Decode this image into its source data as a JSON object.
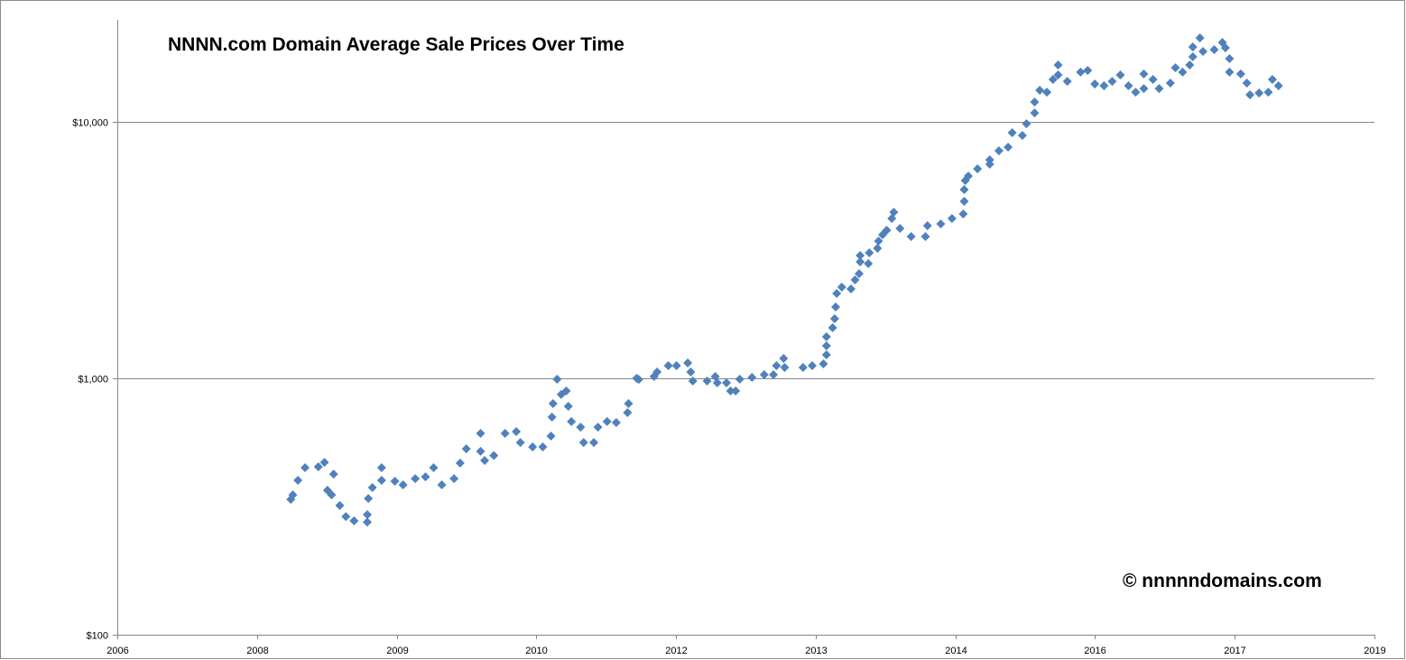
{
  "chart_data": {
    "type": "scatter",
    "title": "NNNN.com Domain Average Sale Prices Over Time",
    "annotation": "© nnnnndomains.com",
    "xlabel": "",
    "ylabel": "",
    "x_tick_labels": [
      "2006",
      "2008",
      "2009",
      "2010",
      "2012",
      "2013",
      "2014",
      "2016",
      "2017",
      "2019"
    ],
    "xlim": [
      2006.7,
      2019.02
    ],
    "y_scale": "log",
    "ylim": [
      100,
      25000
    ],
    "y_ticks": [
      100,
      1000,
      10000
    ],
    "y_tick_labels": [
      "$100",
      "$1,000",
      "$10,000"
    ],
    "grid": "horizontal major gridlines",
    "legend": "none",
    "marker": "diamond",
    "color": "#4f81bd",
    "points": [
      [
        2008.4,
        337
      ],
      [
        2008.42,
        351
      ],
      [
        2008.47,
        400
      ],
      [
        2008.54,
        448
      ],
      [
        2008.67,
        452
      ],
      [
        2008.73,
        470
      ],
      [
        2008.82,
        423
      ],
      [
        2008.76,
        366
      ],
      [
        2008.8,
        351
      ],
      [
        2008.88,
        319
      ],
      [
        2008.94,
        289
      ],
      [
        2009.02,
        278
      ],
      [
        2009.15,
        275
      ],
      [
        2009.15,
        294
      ],
      [
        2009.16,
        340
      ],
      [
        2009.2,
        375
      ],
      [
        2009.29,
        400
      ],
      [
        2009.29,
        448
      ],
      [
        2009.42,
        397
      ],
      [
        2009.5,
        384
      ],
      [
        2009.62,
        406
      ],
      [
        2009.72,
        413
      ],
      [
        2009.8,
        448
      ],
      [
        2009.88,
        384
      ],
      [
        2010.0,
        406
      ],
      [
        2010.06,
        467
      ],
      [
        2010.12,
        531
      ],
      [
        2010.26,
        610
      ],
      [
        2010.26,
        519
      ],
      [
        2010.3,
        478
      ],
      [
        2010.39,
        500
      ],
      [
        2010.5,
        610
      ],
      [
        2010.61,
        620
      ],
      [
        2010.65,
        562
      ],
      [
        2010.77,
        540
      ],
      [
        2010.87,
        540
      ],
      [
        2010.95,
        595
      ],
      [
        2010.96,
        706
      ],
      [
        2010.97,
        797
      ],
      [
        2011.01,
        992
      ],
      [
        2011.05,
        865
      ],
      [
        2011.1,
        893
      ],
      [
        2011.12,
        778
      ],
      [
        2011.15,
        678
      ],
      [
        2011.24,
        645
      ],
      [
        2011.27,
        562
      ],
      [
        2011.37,
        562
      ],
      [
        2011.41,
        645
      ],
      [
        2011.5,
        678
      ],
      [
        2011.59,
        672
      ],
      [
        2011.7,
        735
      ],
      [
        2011.71,
        797
      ],
      [
        2011.79,
        1000
      ],
      [
        2011.81,
        990
      ],
      [
        2011.96,
        1016
      ],
      [
        2011.99,
        1058
      ],
      [
        2012.1,
        1120
      ],
      [
        2012.18,
        1120
      ],
      [
        2012.29,
        1148
      ],
      [
        2012.32,
        1058
      ],
      [
        2012.34,
        976
      ],
      [
        2012.48,
        976
      ],
      [
        2012.56,
        1016
      ],
      [
        2012.58,
        960
      ],
      [
        2012.67,
        960
      ],
      [
        2012.71,
        893
      ],
      [
        2012.76,
        893
      ],
      [
        2012.8,
        992
      ],
      [
        2012.92,
        1008
      ],
      [
        2013.04,
        1033
      ],
      [
        2013.13,
        1033
      ],
      [
        2013.16,
        1120
      ],
      [
        2013.23,
        1195
      ],
      [
        2013.24,
        1102
      ],
      [
        2013.42,
        1102
      ],
      [
        2013.51,
        1120
      ],
      [
        2013.62,
        1138
      ],
      [
        2013.65,
        1235
      ],
      [
        2013.65,
        1339
      ],
      [
        2013.65,
        1452
      ],
      [
        2013.71,
        1575
      ],
      [
        2013.73,
        1708
      ],
      [
        2013.74,
        1897
      ],
      [
        2013.75,
        2143
      ],
      [
        2013.8,
        2269
      ],
      [
        2013.89,
        2232
      ],
      [
        2013.93,
        2420
      ],
      [
        2013.97,
        2560
      ],
      [
        2013.98,
        2847
      ],
      [
        2013.98,
        3013
      ],
      [
        2014.06,
        2800
      ],
      [
        2014.07,
        3086
      ],
      [
        2014.15,
        3214
      ],
      [
        2014.16,
        3430
      ],
      [
        2014.2,
        3631
      ],
      [
        2014.24,
        3779
      ],
      [
        2014.29,
        4200
      ],
      [
        2014.31,
        4446
      ],
      [
        2014.37,
        3843
      ],
      [
        2014.48,
        3573
      ],
      [
        2014.62,
        3573
      ],
      [
        2014.64,
        3937
      ],
      [
        2014.77,
        4000
      ],
      [
        2014.88,
        4200
      ],
      [
        2014.99,
        4375
      ],
      [
        2015.0,
        4898
      ],
      [
        2015.0,
        5445
      ],
      [
        2015.01,
        5902
      ],
      [
        2015.04,
        6149
      ],
      [
        2015.13,
        6561
      ],
      [
        2015.25,
        7112
      ],
      [
        2015.25,
        6836
      ],
      [
        2015.34,
        7716
      ],
      [
        2015.43,
        7967
      ],
      [
        2015.47,
        9078
      ],
      [
        2015.57,
        8859
      ],
      [
        2015.61,
        9840
      ],
      [
        2015.69,
        10840
      ],
      [
        2015.69,
        11950
      ],
      [
        2015.74,
        13280
      ],
      [
        2015.81,
        13060
      ],
      [
        2015.87,
        14640
      ],
      [
        2015.92,
        16670
      ],
      [
        2015.92,
        15240
      ],
      [
        2016.01,
        14390
      ],
      [
        2016.14,
        15630
      ],
      [
        2016.21,
        15870
      ],
      [
        2016.28,
        14060
      ],
      [
        2016.37,
        13830
      ],
      [
        2016.45,
        14390
      ],
      [
        2016.53,
        15240
      ],
      [
        2016.61,
        13830
      ],
      [
        2016.68,
        13060
      ],
      [
        2016.76,
        15380
      ],
      [
        2016.76,
        13490
      ],
      [
        2016.85,
        14640
      ],
      [
        2016.91,
        13490
      ],
      [
        2017.02,
        14170
      ],
      [
        2017.07,
        16260
      ],
      [
        2017.14,
        15630
      ],
      [
        2017.21,
        16670
      ],
      [
        2017.24,
        17940
      ],
      [
        2017.24,
        19600
      ],
      [
        2017.31,
        21250
      ],
      [
        2017.34,
        18820
      ],
      [
        2017.45,
        19130
      ],
      [
        2017.53,
        20420
      ],
      [
        2017.56,
        19450
      ],
      [
        2017.6,
        17640
      ],
      [
        2017.6,
        15630
      ],
      [
        2017.71,
        15380
      ],
      [
        2017.77,
        14170
      ],
      [
        2017.8,
        12760
      ],
      [
        2017.89,
        12970
      ],
      [
        2017.98,
        13060
      ],
      [
        2018.02,
        14640
      ],
      [
        2018.08,
        13830
      ]
    ]
  }
}
